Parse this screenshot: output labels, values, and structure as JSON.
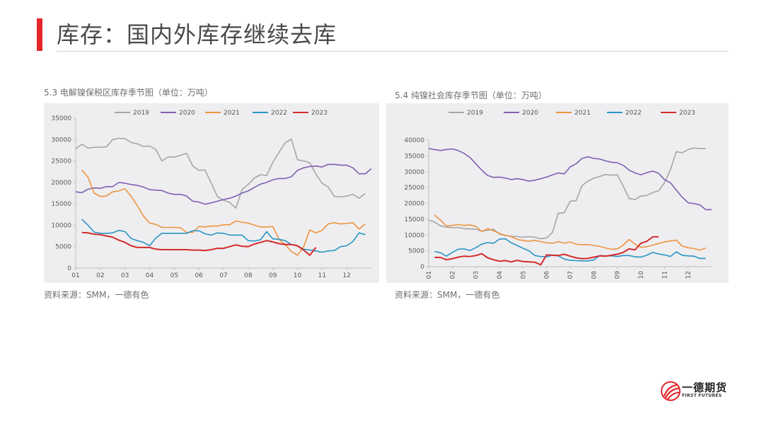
{
  "page": {
    "title": "库存：国内外库存继续去库"
  },
  "brand": {
    "name_cn": "一德期货",
    "name_en": "FIRST FUTURES",
    "logo_icon": "first-futures-logo-icon",
    "accent_color": "#e3262b"
  },
  "charts": [
    {
      "caption": "5.3 电解镍保税区库存季节图（单位：万吨）",
      "source": "资料来源：SMM，一德有色"
    },
    {
      "caption": "5.4 纯镍社会库存季节图（单位：万吨）",
      "source": "资料来源：SMM，一德有色"
    }
  ],
  "chart_data": [
    {
      "type": "line",
      "title": "5.3 电解镍保税区库存季节图（单位：万吨）",
      "xlabel": "",
      "ylabel": "",
      "x_ticks": [
        "01",
        "02",
        "03",
        "04",
        "05",
        "06",
        "07",
        "08",
        "09",
        "10",
        "11",
        "12"
      ],
      "x_range": [
        1,
        13
      ],
      "ylim": [
        0,
        35000
      ],
      "y_ticks": [
        0,
        5000,
        10000,
        15000,
        20000,
        25000,
        30000,
        35000
      ],
      "grid": false,
      "legend_position": "top",
      "series": [
        {
          "name": "2019",
          "color": "#a6a6a6",
          "x": [
            1.0,
            1.25,
            1.5,
            1.75,
            2.0,
            2.25,
            2.5,
            2.75,
            3.0,
            3.25,
            3.5,
            3.75,
            4.0,
            4.25,
            4.5,
            4.75,
            5.0,
            5.25,
            5.5,
            5.75,
            6.0,
            6.25,
            6.5,
            6.75,
            7.0,
            7.25,
            7.5,
            7.75,
            8.0,
            8.25,
            8.5,
            8.75,
            9.0,
            9.25,
            9.5,
            9.75,
            10.0,
            10.25,
            10.5,
            10.75,
            11.0,
            11.25,
            11.5,
            11.75,
            12.0,
            12.25,
            12.5,
            12.75
          ],
          "y": [
            27800,
            28900,
            28000,
            28200,
            28200,
            28300,
            30000,
            30300,
            30200,
            29300,
            29000,
            28400,
            28500,
            27700,
            25000,
            25900,
            25900,
            26300,
            26800,
            23800,
            22800,
            22900,
            19800,
            16700,
            15800,
            15300,
            14000,
            18300,
            19500,
            21000,
            21800,
            21600,
            24700,
            27000,
            29200,
            30100,
            25300,
            25000,
            24600,
            21900,
            19800,
            18900,
            16700,
            16600,
            16800,
            17200,
            16300,
            17400
          ]
        },
        {
          "name": "2020",
          "color": "#7f5fb2",
          "x": [
            1.0,
            1.25,
            1.5,
            1.75,
            2.0,
            2.25,
            2.5,
            2.75,
            3.0,
            3.25,
            3.5,
            3.75,
            4.0,
            4.25,
            4.5,
            4.75,
            5.0,
            5.25,
            5.5,
            5.75,
            6.0,
            6.25,
            6.5,
            6.75,
            7.0,
            7.25,
            7.5,
            7.75,
            8.0,
            8.25,
            8.5,
            8.75,
            9.0,
            9.25,
            9.5,
            9.75,
            10.0,
            10.25,
            10.5,
            10.75,
            11.0,
            11.25,
            11.5,
            11.75,
            12.0,
            12.25,
            12.5,
            12.75,
            13.0
          ],
          "y": [
            17800,
            17600,
            18400,
            18700,
            18600,
            19000,
            19000,
            20000,
            19800,
            19500,
            19300,
            18900,
            18300,
            18200,
            18100,
            17500,
            17200,
            17200,
            16800,
            15600,
            15400,
            14900,
            15200,
            15600,
            16000,
            16300,
            16800,
            17500,
            18000,
            18800,
            19600,
            20000,
            20600,
            20900,
            20900,
            21300,
            22800,
            23400,
            23700,
            23800,
            23600,
            24200,
            24200,
            24000,
            24000,
            23400,
            22000,
            22000,
            23200
          ]
        },
        {
          "name": "2021",
          "color": "#ee9440",
          "x": [
            1.25,
            1.5,
            1.75,
            2.0,
            2.25,
            2.5,
            2.75,
            3.0,
            3.25,
            3.5,
            3.75,
            4.0,
            4.25,
            4.5,
            4.75,
            5.0,
            5.25,
            5.5,
            5.75,
            6.0,
            6.25,
            6.5,
            6.75,
            7.0,
            7.25,
            7.5,
            7.75,
            8.0,
            8.25,
            8.5,
            8.75,
            9.0,
            9.25,
            9.5,
            9.75,
            10.0,
            10.25,
            10.5,
            10.75,
            11.0,
            11.25,
            11.5,
            11.75,
            12.0,
            12.25,
            12.5,
            12.75
          ],
          "y": [
            22900,
            21200,
            17500,
            16700,
            16800,
            17800,
            18000,
            18500,
            16700,
            14600,
            12100,
            10500,
            10200,
            9500,
            9500,
            9500,
            9400,
            8300,
            8300,
            9700,
            9600,
            9800,
            9800,
            10100,
            10100,
            11000,
            10700,
            10500,
            10000,
            9600,
            9600,
            9700,
            6700,
            5500,
            3900,
            3000,
            4900,
            8900,
            8200,
            8800,
            10300,
            10600,
            10300,
            10400,
            10600,
            9100,
            10300
          ]
        },
        {
          "name": "2022",
          "color": "#2a95c5",
          "x": [
            1.25,
            1.5,
            1.75,
            2.0,
            2.25,
            2.5,
            2.75,
            3.0,
            3.25,
            3.5,
            3.75,
            4.0,
            4.25,
            4.5,
            4.75,
            5.0,
            5.25,
            5.5,
            5.75,
            6.0,
            6.25,
            6.5,
            6.75,
            7.0,
            7.25,
            7.5,
            7.75,
            8.0,
            8.25,
            8.5,
            8.75,
            9.0,
            9.25,
            9.5,
            9.75,
            10.0,
            10.25,
            10.5,
            10.75,
            11.0,
            11.25,
            11.5,
            11.75,
            12.0,
            12.25,
            12.5,
            12.75
          ],
          "y": [
            11400,
            10000,
            8400,
            8100,
            8100,
            8200,
            8800,
            8500,
            6900,
            6400,
            6000,
            5200,
            7000,
            8100,
            8100,
            8100,
            8100,
            8100,
            8700,
            8700,
            8000,
            7700,
            8200,
            8100,
            7700,
            7700,
            7700,
            6400,
            6300,
            6600,
            8500,
            6800,
            6700,
            6400,
            5500,
            5200,
            4400,
            4200,
            4000,
            3700,
            4000,
            4100,
            5000,
            5200,
            6200,
            8200,
            7800
          ]
        },
        {
          "name": "2023",
          "color": "#d42b2b",
          "x": [
            1.25,
            1.5,
            1.75,
            2.0,
            2.25,
            2.5,
            2.75,
            3.0,
            3.25,
            3.5,
            3.75,
            4.0,
            4.25,
            4.5,
            4.75,
            5.0,
            5.25,
            5.5,
            5.75,
            6.0,
            6.25,
            6.5,
            6.75,
            7.0,
            7.25,
            7.5,
            7.75,
            8.0,
            8.25,
            8.5,
            8.75,
            9.0,
            9.25,
            9.5,
            9.75,
            10.0,
            10.25,
            10.5,
            10.75
          ],
          "y": [
            8300,
            8200,
            7900,
            7800,
            7500,
            7200,
            6500,
            6000,
            5200,
            4800,
            4800,
            4800,
            4400,
            4300,
            4300,
            4300,
            4300,
            4300,
            4200,
            4200,
            4100,
            4300,
            4600,
            4600,
            5000,
            5400,
            5100,
            5000,
            5600,
            6000,
            6400,
            6100,
            5700,
            5500,
            5500,
            5200,
            4200,
            3000,
            4800
          ]
        }
      ]
    },
    {
      "type": "line",
      "title": "5.4 纯镍社会库存季节图（单位：万吨）",
      "xlabel": "",
      "ylabel": "",
      "x_ticks": [
        "01",
        "02",
        "03",
        "04",
        "05",
        "06",
        "07",
        "08",
        "09",
        "10",
        "11",
        "12"
      ],
      "x_range": [
        1,
        13
      ],
      "ylim": [
        0,
        40000
      ],
      "y_ticks": [
        0,
        5000,
        10000,
        15000,
        20000,
        25000,
        30000,
        35000,
        40000
      ],
      "grid": false,
      "legend_position": "top",
      "series": [
        {
          "name": "2019",
          "color": "#a6a6a6",
          "x": [
            1.0,
            1.25,
            1.5,
            1.75,
            2.0,
            2.25,
            2.5,
            2.75,
            3.0,
            3.25,
            3.5,
            3.75,
            4.0,
            4.25,
            4.5,
            4.75,
            5.0,
            5.25,
            5.5,
            5.75,
            6.0,
            6.25,
            6.5,
            6.75,
            7.0,
            7.25,
            7.5,
            7.75,
            8.0,
            8.25,
            8.5,
            8.75,
            9.0,
            9.25,
            9.5,
            9.75,
            10.0,
            10.25,
            10.5,
            10.75,
            11.0,
            11.25,
            11.5,
            11.75,
            12.0,
            12.25,
            12.5,
            12.75
          ],
          "y": [
            14700,
            14100,
            12900,
            12500,
            12300,
            12400,
            12000,
            11900,
            11800,
            11200,
            11500,
            11800,
            10300,
            9800,
            9600,
            9500,
            9300,
            9500,
            9300,
            8800,
            9100,
            10800,
            16900,
            17000,
            20700,
            20800,
            25600,
            27000,
            27900,
            28500,
            29100,
            28900,
            29000,
            25500,
            21500,
            21200,
            22300,
            22500,
            23400,
            24000,
            26500,
            30600,
            36300,
            36000,
            37000,
            37500,
            37300,
            37300
          ]
        },
        {
          "name": "2020",
          "color": "#7f5fb2",
          "x": [
            1.0,
            1.25,
            1.5,
            1.75,
            2.0,
            2.25,
            2.5,
            2.75,
            3.0,
            3.25,
            3.5,
            3.75,
            4.0,
            4.25,
            4.5,
            4.75,
            5.0,
            5.25,
            5.5,
            5.75,
            6.0,
            6.25,
            6.5,
            6.75,
            7.0,
            7.25,
            7.5,
            7.75,
            8.0,
            8.25,
            8.5,
            8.75,
            9.0,
            9.25,
            9.5,
            9.75,
            10.0,
            10.25,
            10.5,
            10.75,
            11.0,
            11.25,
            11.5,
            11.75,
            12.0,
            12.25,
            12.5,
            12.75,
            13.0
          ],
          "y": [
            37300,
            37000,
            36700,
            37000,
            37200,
            36700,
            35800,
            34500,
            32500,
            30500,
            28800,
            28200,
            28300,
            28000,
            27500,
            27800,
            27500,
            27000,
            27300,
            27800,
            28300,
            29000,
            29600,
            29300,
            31500,
            32500,
            34200,
            34700,
            34200,
            34000,
            33400,
            33000,
            32800,
            32000,
            30500,
            29600,
            29000,
            29700,
            30200,
            29500,
            27500,
            26500,
            24200,
            22000,
            20200,
            19900,
            19500,
            18000,
            18000
          ]
        },
        {
          "name": "2021",
          "color": "#ee9440",
          "x": [
            1.25,
            1.5,
            1.75,
            2.0,
            2.25,
            2.5,
            2.75,
            3.0,
            3.25,
            3.5,
            3.75,
            4.0,
            4.25,
            4.5,
            4.75,
            5.0,
            5.25,
            5.5,
            5.75,
            6.0,
            6.25,
            6.5,
            6.75,
            7.0,
            7.25,
            7.5,
            7.75,
            8.0,
            8.25,
            8.5,
            8.75,
            9.0,
            9.25,
            9.5,
            9.75,
            10.0,
            10.25,
            10.5,
            10.75,
            11.0,
            11.25,
            11.5,
            11.75,
            12.0,
            12.25,
            12.5,
            12.75
          ],
          "y": [
            16300,
            14700,
            12800,
            13000,
            13300,
            13000,
            13200,
            12700,
            11100,
            12000,
            11300,
            10500,
            9900,
            9500,
            8600,
            8300,
            8000,
            8300,
            7900,
            7500,
            7400,
            7900,
            7400,
            7800,
            7100,
            6900,
            7000,
            6700,
            6400,
            5900,
            5500,
            5600,
            6800,
            8600,
            7100,
            6100,
            6300,
            6800,
            7300,
            7800,
            8100,
            8400,
            6500,
            6000,
            5700,
            5200,
            5900
          ]
        },
        {
          "name": "2022",
          "color": "#2a95c5",
          "x": [
            1.25,
            1.5,
            1.75,
            2.0,
            2.25,
            2.5,
            2.75,
            3.0,
            3.25,
            3.5,
            3.75,
            4.0,
            4.25,
            4.5,
            4.75,
            5.0,
            5.25,
            5.5,
            5.75,
            6.0,
            6.25,
            6.5,
            6.75,
            7.0,
            7.25,
            7.5,
            7.75,
            8.0,
            8.25,
            8.5,
            8.75,
            9.0,
            9.25,
            9.5,
            9.75,
            10.0,
            10.25,
            10.5,
            10.75,
            11.0,
            11.25,
            11.5,
            11.75,
            12.0,
            12.25,
            12.5,
            12.75
          ],
          "y": [
            4800,
            4400,
            3300,
            4500,
            5500,
            5600,
            5100,
            6000,
            7100,
            7600,
            7400,
            8700,
            8800,
            7500,
            6700,
            5800,
            5000,
            3500,
            3200,
            3100,
            3600,
            3400,
            2400,
            2000,
            1900,
            1800,
            1800,
            2100,
            3500,
            3400,
            3400,
            3200,
            3500,
            3500,
            3100,
            3000,
            3600,
            4500,
            4000,
            3700,
            3200,
            4700,
            3600,
            3400,
            3300,
            2600,
            2600
          ]
        },
        {
          "name": "2023",
          "color": "#d42b2b",
          "x": [
            1.25,
            1.5,
            1.75,
            2.0,
            2.25,
            2.5,
            2.75,
            3.0,
            3.25,
            3.5,
            3.75,
            4.0,
            4.25,
            4.5,
            4.75,
            5.0,
            5.25,
            5.5,
            5.75,
            6.0,
            6.25,
            6.5,
            6.75,
            7.0,
            7.25,
            7.5,
            7.75,
            8.0,
            8.25,
            8.5,
            8.75,
            9.0,
            9.25,
            9.5,
            9.75,
            10.0,
            10.25,
            10.5,
            10.75
          ],
          "y": [
            2900,
            2900,
            2200,
            2500,
            3000,
            3300,
            3200,
            3500,
            4100,
            2800,
            2200,
            1700,
            1900,
            1500,
            2000,
            1600,
            1500,
            1400,
            600,
            3700,
            3600,
            3500,
            3900,
            3300,
            2800,
            2500,
            2600,
            3000,
            3400,
            3300,
            3600,
            3900,
            4500,
            5600,
            5300,
            7400,
            8000,
            9400,
            9400
          ]
        }
      ]
    }
  ]
}
